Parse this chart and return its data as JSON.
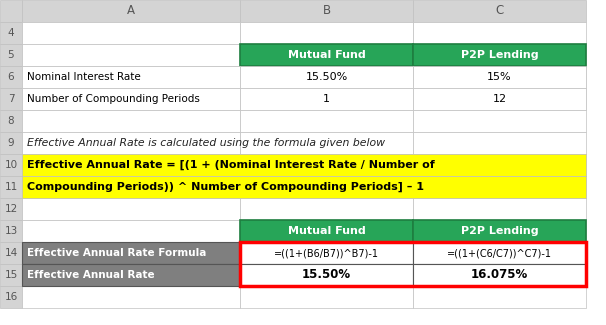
{
  "col_header_color": "#27a558",
  "col_header_text_color": "#ffffff",
  "row_header_color": "#808080",
  "row_header_text_color": "#ffffff",
  "yellow_bg": "#ffff00",
  "yellow_text": "#000000",
  "spreadsheet_bg": "#ffffff",
  "col_hdr_bg": "#d4d4d4",
  "cell_border": "#c0c0c0",
  "green_border": "#1e7e40",
  "red_border_color": "#ff0000",
  "col_A_label": "A",
  "col_B_label": "B",
  "col_C_label": "C",
  "header_mutual_fund": "Mutual Fund",
  "header_p2p": "P2P Lending",
  "row6_A": "Nominal Interest Rate",
  "row6_B": "15.50%",
  "row6_C": "15%",
  "row7_A": "Number of Compounding Periods",
  "row7_B": "1",
  "row7_C": "12",
  "row9_text": "Effective Annual Rate is calculated using the formula given below",
  "formula_line1": "Effective Annual Rate = [(1 + (Nominal Interest Rate / Number of",
  "formula_line2": "Compounding Periods)) ^ Number of Compounding Periods] – 1",
  "row14_A": "Effective Annual Rate Formula",
  "row14_B": "=((1+(B6/B7))^B7)-1",
  "row14_C": "=((1+(C6/C7))^C7)-1",
  "row15_A": "Effective Annual Rate",
  "row15_B": "15.50%",
  "row15_C": "16.075%"
}
